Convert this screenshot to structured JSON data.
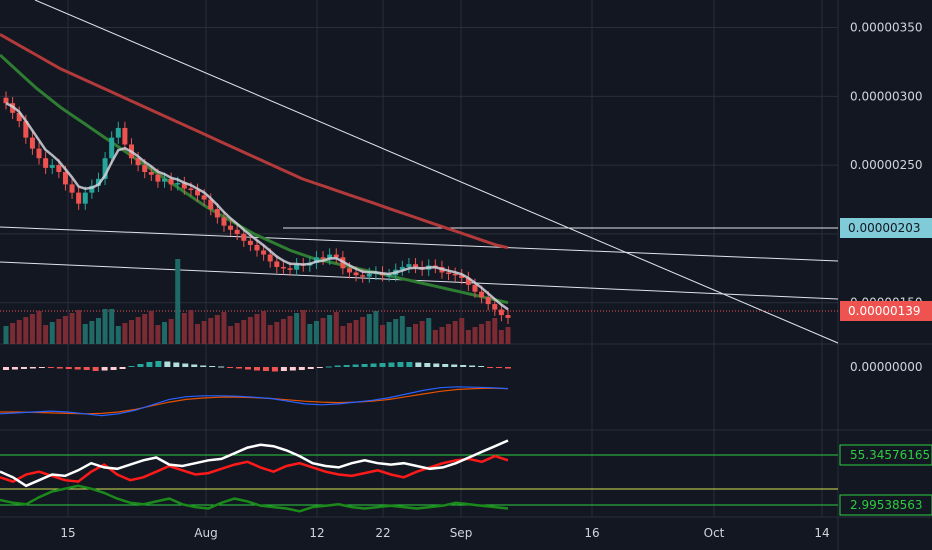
{
  "colors": {
    "background": "#131722",
    "grid": "#2a2e39",
    "up": "#26a69a",
    "down": "#ef5350",
    "vol_up": "#1f6a66",
    "vol_down": "#7a2b33",
    "ema_fast": "#d1d4dc",
    "ma_100": "#b23a3a",
    "ma_50": "#2e7d32",
    "trendline": "#e0e3eb",
    "macd": "#2962ff",
    "macd_signal": "#e65100",
    "rsi_fast": "#ffffff",
    "rsi_slow": "#ff1a1a",
    "rsi_third": "#1b8a1b",
    "level_green": "#2ecc40",
    "level_yellow": "#d4e157",
    "badge_blue": "#7fcbd8",
    "badge_red": "#ef5350"
  },
  "chart_data": [
    {
      "type": "candlestick",
      "title": "",
      "x_ticks": [
        "15",
        "Aug",
        "12",
        "22",
        "Sep",
        "16",
        "Oct",
        "14"
      ],
      "y_ticks": [
        "0.00000350",
        "0.00000300",
        "0.00000250",
        "0.00000150"
      ],
      "ylim": [
        1.2e-06,
        3.7e-06
      ],
      "grid": true,
      "candles_close": [
        2.95e-06,
        2.88e-06,
        2.82e-06,
        2.7e-06,
        2.62e-06,
        2.55e-06,
        2.48e-06,
        2.5e-06,
        2.45e-06,
        2.36e-06,
        2.3e-06,
        2.22e-06,
        2.3e-06,
        2.35e-06,
        2.4e-06,
        2.55e-06,
        2.7e-06,
        2.77e-06,
        2.65e-06,
        2.55e-06,
        2.5e-06,
        2.45e-06,
        2.43e-06,
        2.38e-06,
        2.4e-06,
        2.36e-06,
        2.37e-06,
        2.33e-06,
        2.32e-06,
        2.28e-06,
        2.25e-06,
        2.18e-06,
        2.12e-06,
        2.06e-06,
        2.03e-06,
        2e-06,
        1.95e-06,
        1.92e-06,
        1.88e-06,
        1.85e-06,
        1.8e-06,
        1.76e-06,
        1.75e-06,
        1.74e-06,
        1.78e-06,
        1.77e-06,
        1.79e-06,
        1.83e-06,
        1.82e-06,
        1.85e-06,
        1.83e-06,
        1.75e-06,
        1.72e-06,
        1.7e-06,
        1.69e-06,
        1.71e-06,
        1.72e-06,
        1.7e-06,
        1.7e-06,
        1.74e-06,
        1.76e-06,
        1.78e-06,
        1.76e-06,
        1.74e-06,
        1.77e-06,
        1.76e-06,
        1.72e-06,
        1.71e-06,
        1.7e-06,
        1.68e-06,
        1.63e-06,
        1.58e-06,
        1.54e-06,
        1.49e-06,
        1.45e-06,
        1.41e-06,
        1.39e-06
      ],
      "ma_100": [
        3.45e-06,
        3.4e-06,
        3.35e-06,
        3.3e-06,
        3.25e-06,
        3.2e-06,
        3.16e-06,
        3.12e-06,
        3.08e-06,
        3.04e-06,
        3e-06,
        2.96e-06,
        2.92e-06,
        2.88e-06,
        2.84e-06,
        2.8e-06,
        2.76e-06,
        2.72e-06,
        2.68e-06,
        2.64e-06,
        2.6e-06,
        2.56e-06,
        2.52e-06,
        2.48e-06,
        2.44e-06,
        2.4e-06,
        2.37e-06,
        2.34e-06,
        2.31e-06,
        2.28e-06,
        2.25e-06,
        2.22e-06,
        2.19e-06,
        2.16e-06,
        2.13e-06,
        2.1e-06,
        2.07e-06,
        2.04e-06,
        2.01e-06,
        1.98e-06,
        1.95e-06,
        1.92e-06,
        1.9e-06
      ],
      "ma_50": [
        3.3e-06,
        3.22e-06,
        3.14e-06,
        3.06e-06,
        2.99e-06,
        2.92e-06,
        2.86e-06,
        2.8e-06,
        2.74e-06,
        2.68e-06,
        2.62e-06,
        2.56e-06,
        2.5e-06,
        2.44e-06,
        2.38e-06,
        2.32e-06,
        2.26e-06,
        2.2e-06,
        2.15e-06,
        2.1e-06,
        2.05e-06,
        2e-06,
        1.96e-06,
        1.92e-06,
        1.88e-06,
        1.85e-06,
        1.82e-06,
        1.8e-06,
        1.78e-06,
        1.76e-06,
        1.74e-06,
        1.72e-06,
        1.7e-06,
        1.68e-06,
        1.66e-06,
        1.64e-06,
        1.62e-06,
        1.6e-06,
        1.58e-06,
        1.56e-06,
        1.54e-06,
        1.52e-06,
        1.5e-06
      ],
      "badges": {
        "horizontal_level": "0.00000203",
        "last_price": "0.00000139"
      }
    },
    {
      "type": "histogram",
      "y_ticks": [
        "0.00000000"
      ],
      "macd_hist": [
        -0.3,
        -0.25,
        -0.2,
        -0.15,
        -0.1,
        -0.1,
        -0.15,
        -0.2,
        -0.25,
        -0.3,
        -0.4,
        -0.35,
        -0.3,
        -0.2,
        0.1,
        0.3,
        0.5,
        0.6,
        0.55,
        0.45,
        0.35,
        0.25,
        0.15,
        0.1,
        0.05,
        -0.05,
        -0.15,
        -0.25,
        -0.35,
        -0.4,
        -0.45,
        -0.4,
        -0.35,
        -0.3,
        -0.2,
        -0.1,
        0.05,
        0.15,
        0.2,
        0.25,
        0.3,
        0.35,
        0.4,
        0.45,
        0.5,
        0.5,
        0.45,
        0.4,
        0.35,
        0.3,
        0.25,
        0.2,
        0.15,
        0.1,
        -0.05,
        -0.1,
        -0.15
      ],
      "macd_line": [
        -0.6,
        -0.55,
        -0.5,
        -0.45,
        -0.5,
        -0.6,
        -0.7,
        -0.6,
        -0.4,
        -0.1,
        0.2,
        0.35,
        0.4,
        0.4,
        0.38,
        0.32,
        0.25,
        0.1,
        -0.05,
        -0.1,
        -0.05,
        0.05,
        0.15,
        0.3,
        0.5,
        0.7,
        0.85,
        0.9,
        0.88,
        0.85,
        0.8
      ],
      "signal_line": [
        -0.5,
        -0.5,
        -0.52,
        -0.55,
        -0.58,
        -0.6,
        -0.58,
        -0.5,
        -0.35,
        -0.15,
        0.05,
        0.2,
        0.28,
        0.32,
        0.33,
        0.3,
        0.25,
        0.18,
        0.1,
        0.05,
        0.02,
        0.05,
        0.1,
        0.2,
        0.35,
        0.5,
        0.65,
        0.75,
        0.8,
        0.82,
        0.8
      ]
    },
    {
      "type": "line",
      "series": [
        {
          "values": [
            52,
            48,
            42,
            46,
            50,
            49,
            53,
            58,
            55,
            54,
            57,
            60,
            62,
            57,
            56,
            58,
            60,
            61,
            65,
            69,
            71,
            70,
            67,
            63,
            58,
            56,
            55,
            58,
            60,
            58,
            57,
            58,
            56,
            54,
            55,
            58,
            62,
            66,
            70,
            74
          ]
        },
        {
          "values": [
            48,
            45,
            50,
            52,
            49,
            46,
            45,
            52,
            57,
            50,
            46,
            48,
            52,
            56,
            53,
            50,
            51,
            54,
            57,
            59,
            55,
            52,
            56,
            58,
            55,
            52,
            50,
            49,
            51,
            53,
            50,
            48,
            52,
            55,
            58,
            60,
            61,
            59,
            63,
            60
          ]
        },
        {
          "values": [
            32,
            30,
            29,
            34,
            38,
            40,
            42,
            40,
            37,
            33,
            30,
            29,
            31,
            33,
            29,
            27,
            26,
            30,
            33,
            31,
            28,
            27,
            26,
            24,
            27,
            28,
            29,
            27,
            26,
            27,
            28,
            27,
            26,
            27,
            28,
            30,
            29,
            28,
            27,
            26
          ]
        }
      ],
      "levels": [
        "55.34576165",
        "2.99538563"
      ]
    }
  ]
}
